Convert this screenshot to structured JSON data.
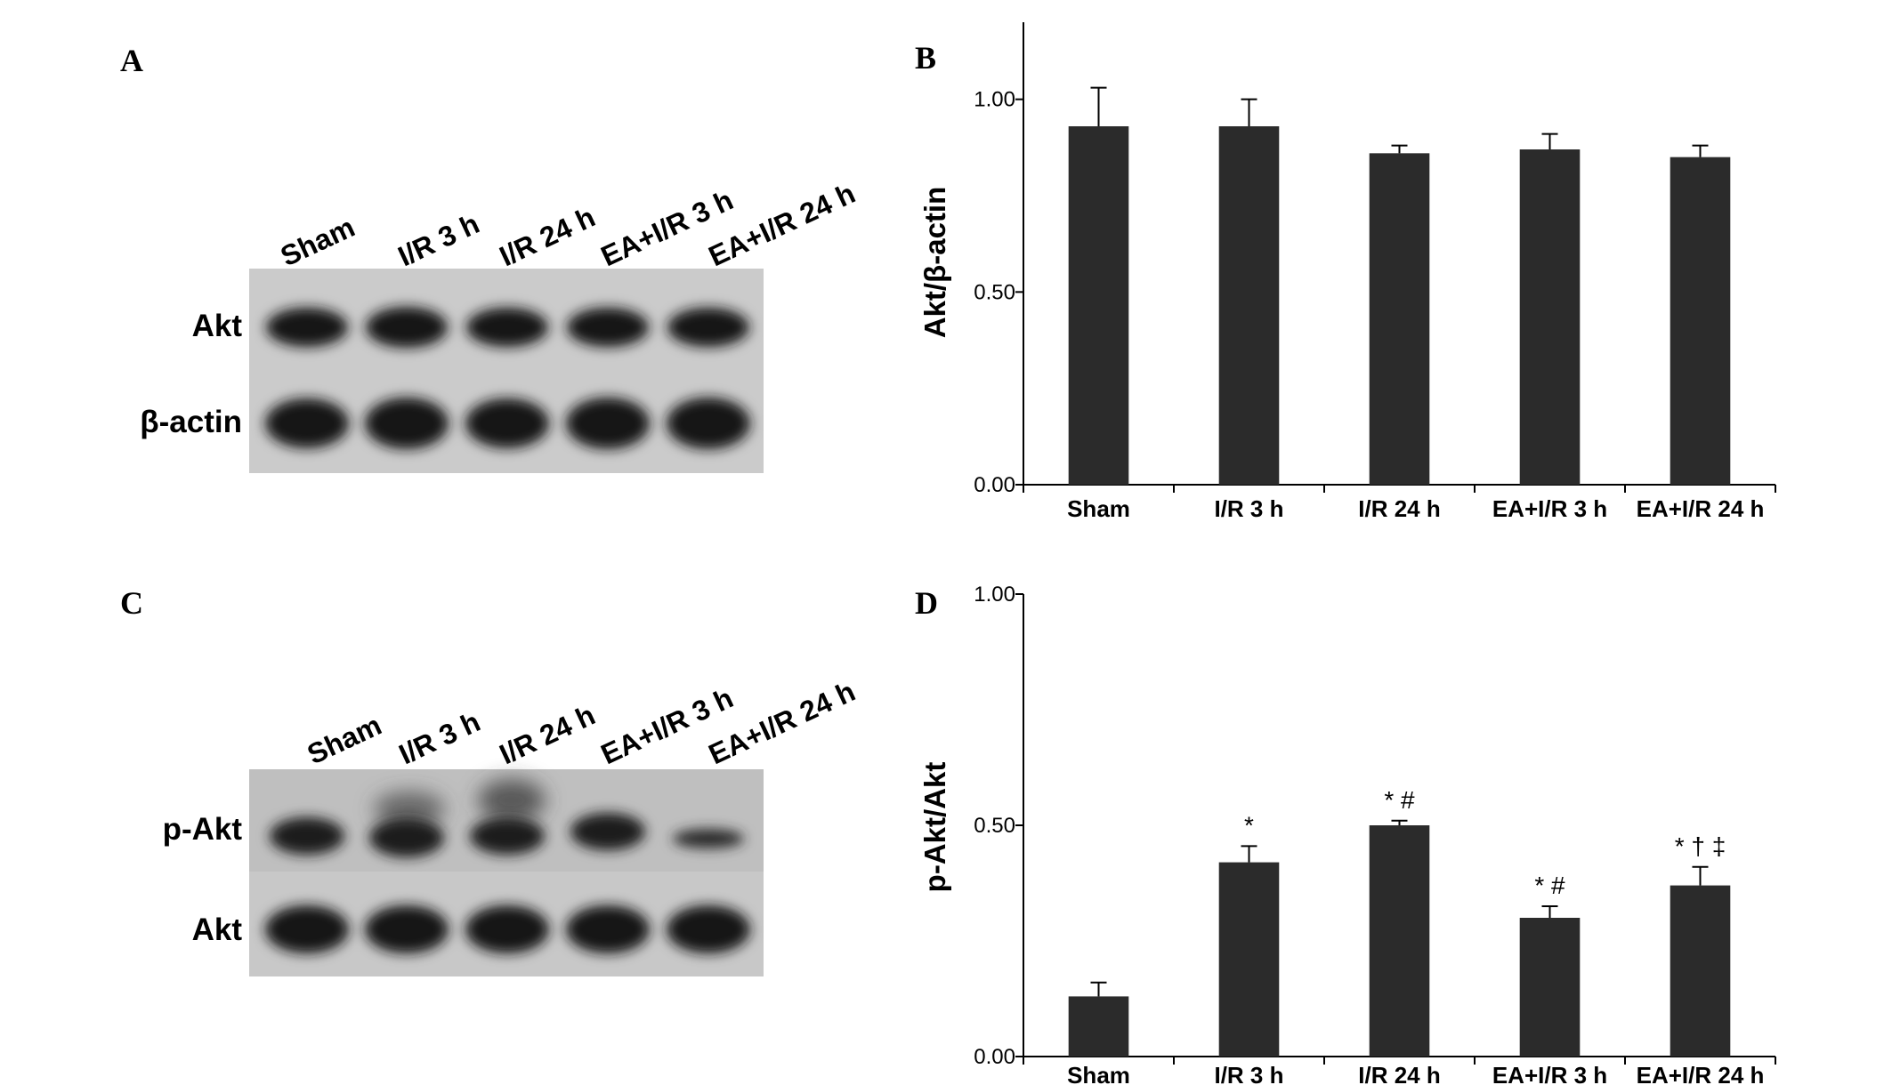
{
  "panels": {
    "A": {
      "letter": "A",
      "lanes": [
        "Sham",
        "I/R 3 h",
        "I/R 24 h",
        "EA+I/R 3 h",
        "EA+I/R 24 h"
      ],
      "rows": [
        "Akt",
        "β-actin"
      ]
    },
    "C": {
      "letter": "C",
      "lanes": [
        "Sham",
        "I/R 3 h",
        "I/R 24 h",
        "EA+I/R 3 h",
        "EA+I/R 24 h"
      ],
      "rows": [
        "p-Akt",
        "Akt"
      ]
    }
  },
  "chart_data": [
    {
      "panel": "B",
      "letter": "B",
      "type": "bar",
      "categories": [
        "Sham",
        "I/R 3 h",
        "I/R 24 h",
        "EA+I/R 3 h",
        "EA+I/R 24 h"
      ],
      "values": [
        0.93,
        0.93,
        0.86,
        0.87,
        0.85
      ],
      "errors": [
        0.1,
        0.07,
        0.02,
        0.04,
        0.03
      ],
      "significance": [
        "",
        "",
        "",
        "",
        ""
      ],
      "ylabel": "Akt/β-actin",
      "ylim": [
        0,
        1.2
      ],
      "yticks": [
        0.0,
        0.5,
        1.0
      ],
      "ytick_labels": [
        "0.00",
        "0.50",
        "1.00"
      ],
      "bar_color": "#2b2b2b"
    },
    {
      "panel": "D",
      "letter": "D",
      "type": "bar",
      "categories": [
        "Sham",
        "I/R 3 h",
        "I/R 24 h",
        "EA+I/R 3 h",
        "EA+I/R 24 h"
      ],
      "values": [
        0.13,
        0.42,
        0.5,
        0.3,
        0.37
      ],
      "errors": [
        0.03,
        0.035,
        0.01,
        0.025,
        0.04
      ],
      "significance": [
        "",
        "*",
        "* #",
        "* #",
        "* † ‡"
      ],
      "ylabel": "p-Akt/Akt",
      "ylim": [
        0,
        1.0
      ],
      "yticks": [
        0.0,
        0.5,
        1.0
      ],
      "ytick_labels": [
        "0.00",
        "0.50",
        "1.00"
      ],
      "bar_color": "#2b2b2b"
    }
  ]
}
